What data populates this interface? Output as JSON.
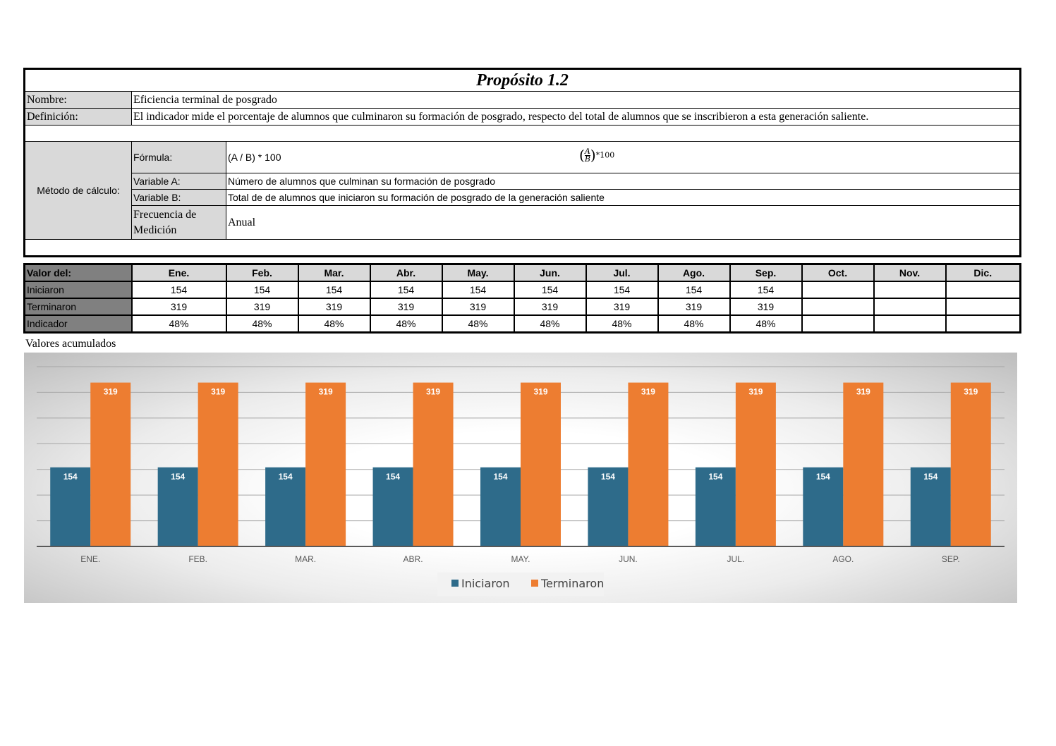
{
  "header": {
    "title": "Propósito 1.2"
  },
  "info": {
    "nombre_label": "Nombre:",
    "nombre_value": "Eficiencia terminal de posgrado",
    "definicion_label": "Definición:",
    "definicion_value": "El indicador mide el porcentaje de alumnos que culminaron su formación de posgrado, respecto del total de alumnos que se inscribieron a esta generación saliente.",
    "metodo_label": "Método de cálculo:",
    "formula_label": "Fórmula:",
    "formula_value": "(A / B) * 100",
    "formula_render_num": "A",
    "formula_render_den": "B",
    "formula_render_tail": "*100",
    "var_a_label": "Variable A:",
    "var_a_value": "Número de alumnos que culminan su formación de posgrado",
    "var_b_label": "Variable B:",
    "var_b_value": "Total de de alumnos que iniciaron su formación de posgrado de la generación saliente",
    "frecuencia_label_1": "Frecuencia de",
    "frecuencia_label_2": "Medición",
    "frecuencia_value": "Anual"
  },
  "table": {
    "corner": "Valor del:",
    "months": [
      "Ene.",
      "Feb.",
      "Mar.",
      "Abr.",
      "May.",
      "Jun.",
      "Jul.",
      "Ago.",
      "Sep.",
      "Oct.",
      "Nov.",
      "Dic."
    ],
    "rows": [
      {
        "label": "Iniciaron",
        "values": [
          "154",
          "154",
          "154",
          "154",
          "154",
          "154",
          "154",
          "154",
          "154",
          "",
          "",
          ""
        ]
      },
      {
        "label": "Terminaron",
        "values": [
          "319",
          "319",
          "319",
          "319",
          "319",
          "319",
          "319",
          "319",
          "319",
          "",
          "",
          ""
        ]
      },
      {
        "label": "Indicador",
        "values": [
          "48%",
          "48%",
          "48%",
          "48%",
          "48%",
          "48%",
          "48%",
          "48%",
          "48%",
          "",
          "",
          ""
        ]
      }
    ]
  },
  "acumulados_label": "Valores acumulados",
  "chart_data": {
    "type": "bar",
    "categories": [
      "ENE.",
      "FEB.",
      "MAR.",
      "ABR.",
      "MAY.",
      "JUN.",
      "JUL.",
      "AGO.",
      "SEP."
    ],
    "series": [
      {
        "name": "Iniciaron",
        "values": [
          154,
          154,
          154,
          154,
          154,
          154,
          154,
          154,
          154
        ],
        "color": "#2e6b8a"
      },
      {
        "name": "Terminaron",
        "values": [
          319,
          319,
          319,
          319,
          319,
          319,
          319,
          319,
          319
        ],
        "color": "#ed7d31"
      }
    ],
    "ylim": [
      0,
      350
    ],
    "grid": true,
    "legend": "bottom",
    "data_labels": true
  }
}
